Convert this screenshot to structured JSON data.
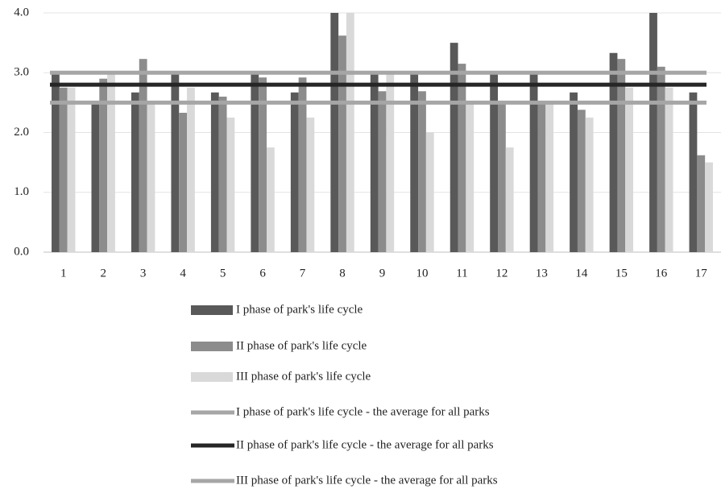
{
  "chart_data": {
    "type": "bar",
    "categories": [
      "1",
      "2",
      "3",
      "4",
      "5",
      "6",
      "7",
      "8",
      "9",
      "10",
      "11",
      "12",
      "13",
      "14",
      "15",
      "16",
      "17"
    ],
    "series": [
      {
        "name": "I phase of park's life cycle",
        "color": "#595959",
        "values": [
          3.0,
          2.5,
          2.67,
          3.0,
          2.67,
          3.0,
          2.67,
          4.0,
          3.0,
          3.0,
          3.5,
          3.0,
          3.0,
          2.67,
          3.33,
          4.0,
          2.67
        ]
      },
      {
        "name": "II phase of park's life cycle",
        "color": "#8c8c8c",
        "values": [
          2.75,
          2.9,
          3.23,
          2.33,
          2.6,
          2.92,
          2.92,
          3.62,
          2.69,
          2.69,
          3.15,
          2.5,
          2.5,
          2.38,
          3.23,
          3.1,
          1.62
        ]
      },
      {
        "name": "III phase of park's life cycle",
        "color": "#d9d9d9",
        "values": [
          2.75,
          3.0,
          2.5,
          2.75,
          2.25,
          1.75,
          2.25,
          4.0,
          3.0,
          2.0,
          2.5,
          1.75,
          2.5,
          2.25,
          2.75,
          2.75,
          1.5
        ]
      }
    ],
    "reference_lines": [
      {
        "name": "I phase of park's life cycle - the average for all parks",
        "color": "#a6a6a6",
        "value": 3.0
      },
      {
        "name": "II phase of park's life cycle - the average for all parks",
        "color": "#262626",
        "value": 2.8
      },
      {
        "name": "III phase of park's life cycle - the average for all parks",
        "color": "#a6a6a6",
        "value": 2.5
      }
    ],
    "ylim": [
      0,
      4
    ],
    "yticks": [
      {
        "value": 0,
        "label": "0.0"
      },
      {
        "value": 1,
        "label": "1.0"
      },
      {
        "value": 2,
        "label": "2.0"
      },
      {
        "value": 3,
        "label": "3.0"
      },
      {
        "value": 4,
        "label": "4.0"
      }
    ],
    "grid": true
  }
}
